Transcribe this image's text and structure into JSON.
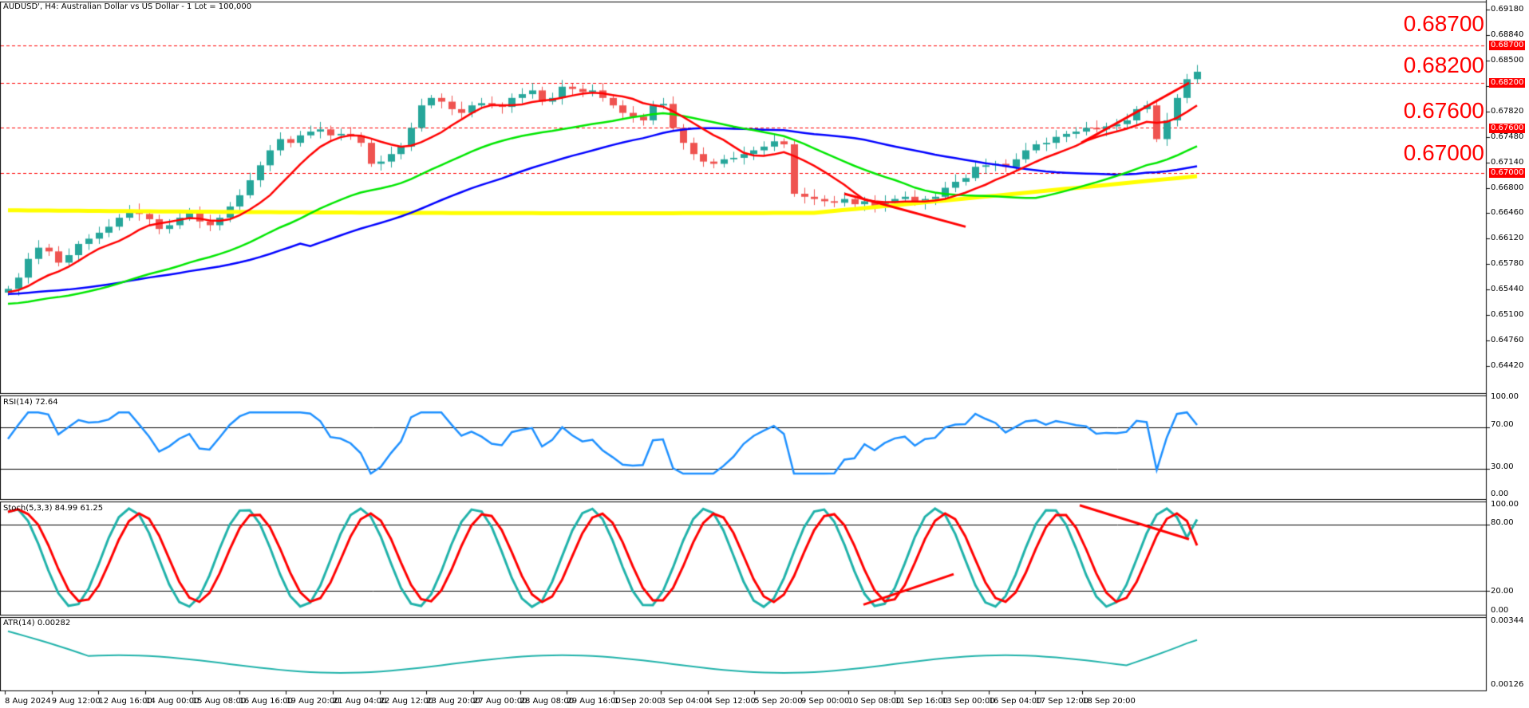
{
  "header": {
    "title": "AUDUSD', H4:  Australian Dollar vs US Dollar - 1 Lot = 100,000"
  },
  "levels": [
    {
      "label": "0.68700",
      "value": 0.687
    },
    {
      "label": "0.68200",
      "value": 0.682
    },
    {
      "label": "0.67600",
      "value": 0.676
    },
    {
      "label": "0.67000",
      "value": 0.67
    }
  ],
  "colors": {
    "bull": "#26a69a",
    "bear": "#ef5350",
    "level_line": "#ff0000",
    "ma_fast": "#ff0000",
    "ma_mid": "#00e600",
    "ma_slow": "#0000ff",
    "ma_long": "#ffff00",
    "rsi": "#1e90ff",
    "stoch_main": "#20b2aa",
    "stoch_signal": "#ff0000",
    "atr": "#20b2aa"
  },
  "panels": {
    "rsi": {
      "label": "RSI(14) 72.64",
      "ticks": [
        "100.00",
        "70.00",
        "30.00",
        "0.00"
      ]
    },
    "stoch": {
      "label": "Stoch(5,3,3) 84.99 61.25",
      "ticks": [
        "100.00",
        "80.00",
        "20.00",
        "0.00"
      ]
    },
    "atr": {
      "label": "ATR(14) 0.00282",
      "ticks": [
        "0.00344",
        "0.00126"
      ]
    }
  },
  "price_axis": [
    "0.69180",
    "0.68840",
    "0.68500",
    "0.68160",
    "0.67820",
    "0.67480",
    "0.67140",
    "0.66800",
    "0.66460",
    "0.66120",
    "0.65780",
    "0.65440",
    "0.65100",
    "0.64760",
    "0.64420"
  ],
  "time_axis": [
    "8 Aug 2024",
    "9 Aug 12:00",
    "12 Aug 16:00",
    "14 Aug 00:00",
    "15 Aug 08:00",
    "16 Aug 16:00",
    "19 Aug 20:00",
    "21 Aug 04:00",
    "22 Aug 12:00",
    "23 Aug 20:00",
    "27 Aug 00:00",
    "28 Aug 08:00",
    "29 Aug 16:00",
    "1 Sep 20:00",
    "3 Sep 04:00",
    "4 Sep 12:00",
    "5 Sep 20:00",
    "9 Sep 00:00",
    "10 Sep 08:00",
    "11 Sep 16:00",
    "13 Sep 00:00",
    "16 Sep 04:00",
    "17 Sep 12:00",
    "18 Sep 20:00"
  ],
  "chart_data": {
    "type": "candlestick",
    "title": "AUDUSD', H4: Australian Dollar vs US Dollar - 1 Lot = 100,000",
    "ylim": [
      0.6425,
      0.6935
    ],
    "horizontal_levels": [
      0.687,
      0.682,
      0.676,
      0.67
    ],
    "close_path": [
      0.6545,
      0.656,
      0.6585,
      0.66,
      0.6595,
      0.658,
      0.659,
      0.6605,
      0.6612,
      0.662,
      0.6628,
      0.664,
      0.665,
      0.6645,
      0.6638,
      0.6625,
      0.663,
      0.664,
      0.6648,
      0.6635,
      0.663,
      0.664,
      0.6655,
      0.667,
      0.669,
      0.671,
      0.673,
      0.6745,
      0.674,
      0.675,
      0.6755,
      0.6758,
      0.675,
      0.6752,
      0.675,
      0.674,
      0.6712,
      0.6715,
      0.6725,
      0.6735,
      0.676,
      0.679,
      0.68,
      0.6795,
      0.6785,
      0.678,
      0.679,
      0.6793,
      0.679,
      0.6788,
      0.68,
      0.6805,
      0.681,
      0.6795,
      0.68,
      0.6815,
      0.6812,
      0.6808,
      0.681,
      0.68,
      0.679,
      0.678,
      0.6775,
      0.677,
      0.679,
      0.6792,
      0.676,
      0.674,
      0.6725,
      0.6715,
      0.6712,
      0.6718,
      0.672,
      0.6725,
      0.673,
      0.6735,
      0.6742,
      0.6738,
      0.6672,
      0.6668,
      0.6665,
      0.6662,
      0.666,
      0.6665,
      0.6658,
      0.6662,
      0.6655,
      0.666,
      0.6665,
      0.6668,
      0.666,
      0.6665,
      0.6668,
      0.668,
      0.6688,
      0.6693,
      0.6708,
      0.671,
      0.6712,
      0.6708,
      0.6718,
      0.673,
      0.6738,
      0.674,
      0.6748,
      0.6752,
      0.6755,
      0.676,
      0.6758,
      0.6762,
      0.6765,
      0.677,
      0.6785,
      0.679,
      0.6745,
      0.677,
      0.68,
      0.6825,
      0.6835
    ],
    "moving_averages": [
      {
        "name": "MA fast (red)",
        "end": 0.6765
      },
      {
        "name": "MA mid (green)",
        "end": 0.6712
      },
      {
        "name": "MA slow (blue)",
        "end": 0.673
      },
      {
        "name": "MA long (yellow)",
        "end": 0.6698
      }
    ],
    "trendlines": [
      {
        "from": [
          "5 Sep 20:00",
          0.6672
        ],
        "to": [
          "10 Sep 08:00",
          0.6628
        ]
      },
      {
        "from": [
          "16 Sep 04:00",
          0.674
        ],
        "to": [
          "18 Sep 20:00",
          0.682
        ]
      }
    ],
    "indicators": {
      "rsi": {
        "period": 14,
        "last": 72.64,
        "levels": [
          70,
          30
        ]
      },
      "stoch": {
        "params": "5,3,3",
        "main": 84.99,
        "signal": 61.25,
        "levels": [
          80,
          20
        ]
      },
      "atr": {
        "period": 14,
        "last": 0.00282,
        "range": [
          0.00126,
          0.00344
        ]
      }
    }
  }
}
